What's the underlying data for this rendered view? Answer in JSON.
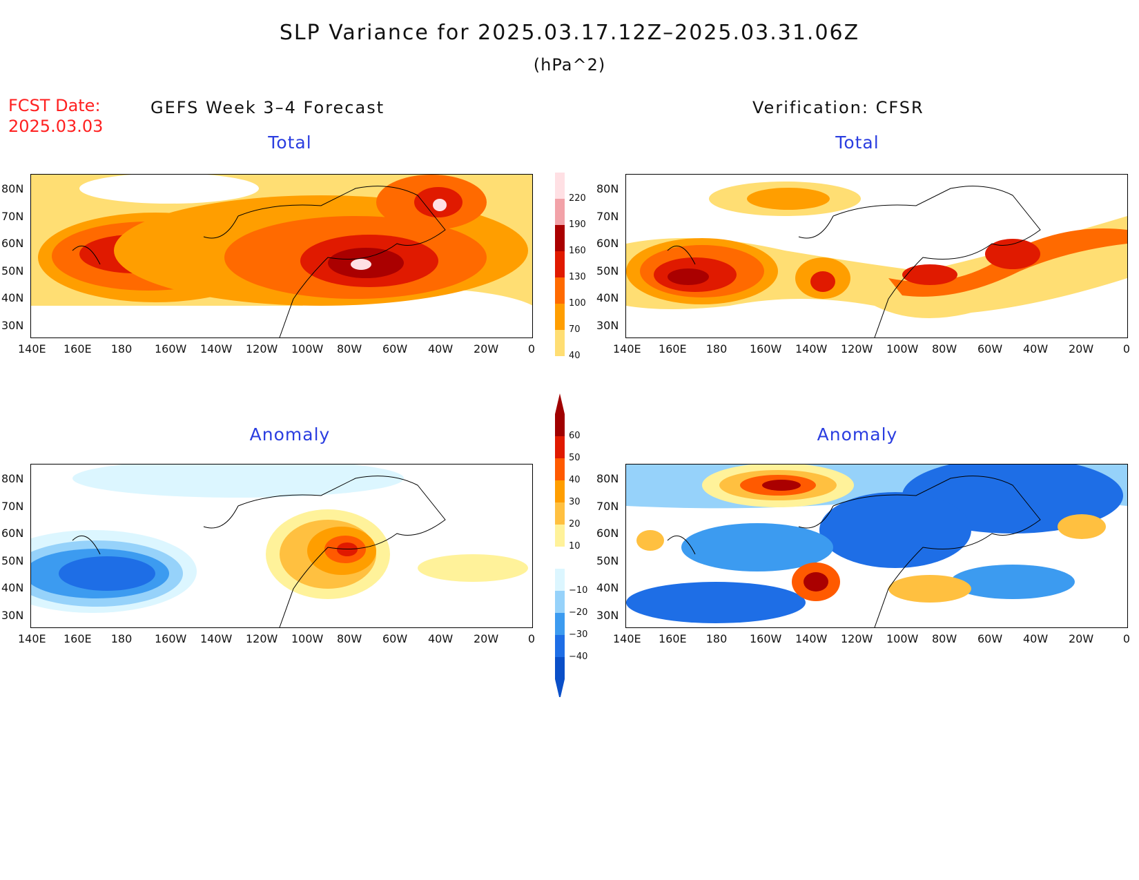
{
  "header": {
    "title": "SLP Variance for 2025.03.17.12Z–2025.03.31.06Z",
    "units": "(hPa^2)",
    "fcst_label": "FCST Date:",
    "fcst_date": "2025.03.03"
  },
  "columns": {
    "left": "GEFS Week 3–4 Forecast",
    "right": "Verification: CFSR"
  },
  "panels": {
    "top_left": "Total",
    "top_right": "Total",
    "bottom_left": "Anomaly",
    "bottom_right": "Anomaly"
  },
  "axes": {
    "lat_labels": [
      "80N",
      "70N",
      "60N",
      "50N",
      "40N",
      "30N"
    ],
    "lon_labels": [
      "140E",
      "160E",
      "180",
      "160W",
      "140W",
      "120W",
      "100W",
      "80W",
      "60W",
      "40W",
      "20W",
      "0"
    ]
  },
  "colorbars": {
    "total": {
      "levels": [
        "220",
        "190",
        "160",
        "130",
        "100",
        "70",
        "40"
      ],
      "colors": [
        "#ffe0e4",
        "#f2a2a8",
        "#aa0000",
        "#e01a00",
        "#ff6a00",
        "#ff9e00",
        "#ffde73"
      ]
    },
    "anomaly": {
      "levels": [
        "60",
        "50",
        "40",
        "30",
        "20",
        "10",
        "−10",
        "−20",
        "−30",
        "−40"
      ],
      "colors": [
        "#a00000",
        "#e01a00",
        "#ff5a00",
        "#ff9e00",
        "#ffc040",
        "#fff29a",
        "#ffffff",
        "#dcf6ff",
        "#96d2fa",
        "#3c9bf0",
        "#1e6ee6",
        "#0a4fc8"
      ]
    }
  }
}
